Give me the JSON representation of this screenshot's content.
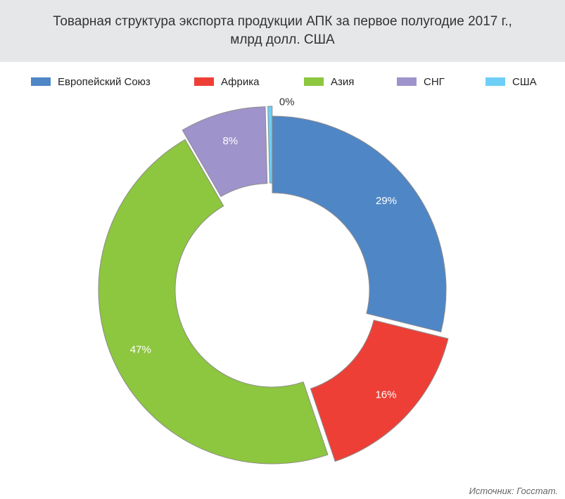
{
  "header": {
    "title_line1": "Товарная структура экспорта продукции АПК за первое полугодие 2017 г.,",
    "title_line2": "млрд долл. США"
  },
  "chart_data": {
    "type": "pie",
    "donut": true,
    "categories": [
      "Европейский Союз",
      "Африка",
      "Азия",
      "СНГ",
      "США"
    ],
    "values": [
      29,
      16,
      47,
      8,
      0.4
    ],
    "labels": [
      "29%",
      "16%",
      "47%",
      "8%",
      "0%"
    ],
    "colors": [
      "#4f86c6",
      "#ee3f37",
      "#8dc63f",
      "#9f93cb",
      "#6dcff6"
    ],
    "exploded": [
      false,
      true,
      false,
      true,
      true
    ],
    "legend_position": "top",
    "unit": "%"
  },
  "source": "Источник: Госстат."
}
